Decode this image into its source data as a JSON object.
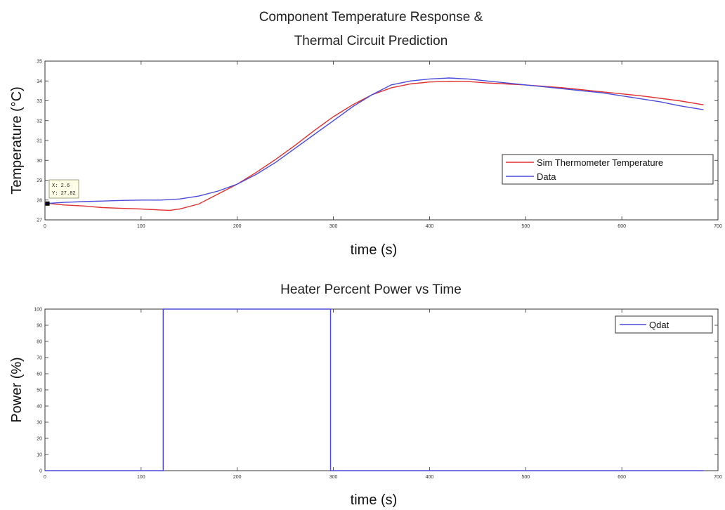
{
  "chart_data": [
    {
      "type": "line",
      "title_lines": [
        "Component Temperature Response &",
        "Thermal Circuit Prediction"
      ],
      "xlabel": "time (s)",
      "ylabel": "Temperature (°C)",
      "xlim": [
        0,
        700
      ],
      "ylim": [
        27,
        35
      ],
      "xticks": [
        0,
        100,
        200,
        300,
        400,
        500,
        600,
        700
      ],
      "yticks": [
        27,
        28,
        29,
        30,
        31,
        32,
        33,
        34,
        35
      ],
      "grid": false,
      "legend_position": "right",
      "series": [
        {
          "name": "Sim Thermometer Temperature",
          "color": "#e03030",
          "x": [
            0,
            20,
            40,
            60,
            80,
            100,
            120,
            130,
            140,
            160,
            180,
            200,
            220,
            240,
            260,
            280,
            300,
            320,
            340,
            360,
            380,
            400,
            420,
            440,
            460,
            480,
            500,
            540,
            580,
            620,
            660,
            685
          ],
          "y": [
            27.85,
            27.75,
            27.7,
            27.62,
            27.58,
            27.55,
            27.5,
            27.48,
            27.55,
            27.8,
            28.3,
            28.8,
            29.4,
            30.05,
            30.75,
            31.5,
            32.2,
            32.8,
            33.3,
            33.65,
            33.85,
            33.95,
            33.98,
            33.97,
            33.9,
            33.85,
            33.8,
            33.65,
            33.45,
            33.25,
            33.0,
            32.8
          ]
        },
        {
          "name": "Data",
          "color": "#4b4bdb",
          "x": [
            0,
            20,
            40,
            60,
            80,
            100,
            120,
            140,
            160,
            180,
            200,
            220,
            240,
            260,
            280,
            300,
            320,
            340,
            360,
            380,
            400,
            420,
            440,
            460,
            480,
            500,
            520,
            540,
            560,
            580,
            600,
            620,
            640,
            660,
            685
          ],
          "y": [
            27.82,
            27.88,
            27.92,
            27.95,
            27.98,
            28.0,
            28.0,
            28.05,
            28.2,
            28.45,
            28.8,
            29.3,
            29.9,
            30.6,
            31.3,
            32.0,
            32.7,
            33.3,
            33.8,
            34.0,
            34.1,
            34.15,
            34.1,
            34.0,
            33.9,
            33.8,
            33.7,
            33.6,
            33.5,
            33.4,
            33.25,
            33.1,
            32.95,
            32.75,
            32.55
          ]
        }
      ],
      "datatip": {
        "x": 2.6,
        "y": 27.82,
        "line1": "X: 2.6",
        "line2": "Y: 27.82"
      }
    },
    {
      "type": "line",
      "title": "Heater Percent Power vs Time",
      "xlabel": "time (s)",
      "ylabel": "Power (%)",
      "xlim": [
        0,
        700
      ],
      "ylim": [
        0,
        100
      ],
      "xticks": [
        0,
        100,
        200,
        300,
        400,
        500,
        600,
        700
      ],
      "yticks": [
        0,
        10,
        20,
        30,
        40,
        50,
        60,
        70,
        80,
        90,
        100
      ],
      "grid": false,
      "legend_position": "top-right",
      "series": [
        {
          "name": "Qdat",
          "color": "#4b4bdb",
          "x": [
            0,
            123,
            123,
            297,
            297,
            685
          ],
          "y": [
            0,
            0,
            100,
            100,
            0,
            0
          ]
        }
      ]
    }
  ]
}
